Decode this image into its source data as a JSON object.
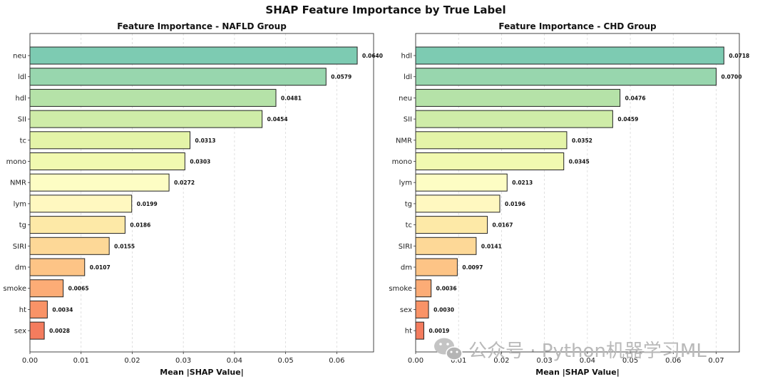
{
  "figure_title": "SHAP Feature Importance by True Label",
  "watermark": "公众号 · Python机器学习ML",
  "colors": [
    "#7dcbb2",
    "#98d6ae",
    "#b5e2a8",
    "#cfeca8",
    "#e4f4a8",
    "#f1f9b0",
    "#fdfdc4",
    "#fff8c0",
    "#fde9a7",
    "#fdd897",
    "#fdc486",
    "#fcac76",
    "#f99367",
    "#f47c5e"
  ],
  "chart_data": [
    {
      "type": "bar",
      "orientation": "horizontal",
      "title": "Feature Importance - NAFLD Group",
      "xlabel": "Mean |SHAP Value|",
      "ylabel": "",
      "xlim": [
        0,
        0.0672
      ],
      "xticks": [
        0,
        0.01,
        0.02,
        0.03,
        0.04,
        0.05,
        0.06
      ],
      "xtick_labels": [
        "0.00",
        "0.01",
        "0.02",
        "0.03",
        "0.04",
        "0.05",
        "0.06"
      ],
      "grid": "x, dashed",
      "categories": [
        "neu",
        "ldl",
        "hdl",
        "SII",
        "tc",
        "mono",
        "NMR",
        "lym",
        "tg",
        "SIRI",
        "dm",
        "smoke",
        "ht",
        "sex"
      ],
      "values": [
        0.064,
        0.0579,
        0.0481,
        0.0454,
        0.0313,
        0.0303,
        0.0272,
        0.0199,
        0.0186,
        0.0155,
        0.0107,
        0.0065,
        0.0034,
        0.0028
      ],
      "value_labels": [
        "0.0640",
        "0.0579",
        "0.0481",
        "0.0454",
        "0.0313",
        "0.0303",
        "0.0272",
        "0.0199",
        "0.0186",
        "0.0155",
        "0.0107",
        "0.0065",
        "0.0034",
        "0.0028"
      ]
    },
    {
      "type": "bar",
      "orientation": "horizontal",
      "title": "Feature Importance - CHD Group",
      "xlabel": "Mean |SHAP Value|",
      "ylabel": "",
      "xlim": [
        0,
        0.0754
      ],
      "xticks": [
        0,
        0.01,
        0.02,
        0.03,
        0.04,
        0.05,
        0.06,
        0.07
      ],
      "xtick_labels": [
        "0.00",
        "0.01",
        "0.02",
        "0.03",
        "0.04",
        "0.05",
        "0.06",
        "0.07"
      ],
      "grid": "x, dashed",
      "categories": [
        "hdl",
        "ldl",
        "neu",
        "SII",
        "NMR",
        "mono",
        "lym",
        "tg",
        "tc",
        "SIRI",
        "dm",
        "smoke",
        "sex",
        "ht"
      ],
      "values": [
        0.0718,
        0.07,
        0.0476,
        0.0459,
        0.0352,
        0.0345,
        0.0213,
        0.0196,
        0.0167,
        0.0141,
        0.0097,
        0.0036,
        0.003,
        0.0019
      ],
      "value_labels": [
        "0.0718",
        "0.0700",
        "0.0476",
        "0.0459",
        "0.0352",
        "0.0345",
        "0.0213",
        "0.0196",
        "0.0167",
        "0.0141",
        "0.0097",
        "0.0036",
        "0.0030",
        "0.0019"
      ]
    }
  ]
}
